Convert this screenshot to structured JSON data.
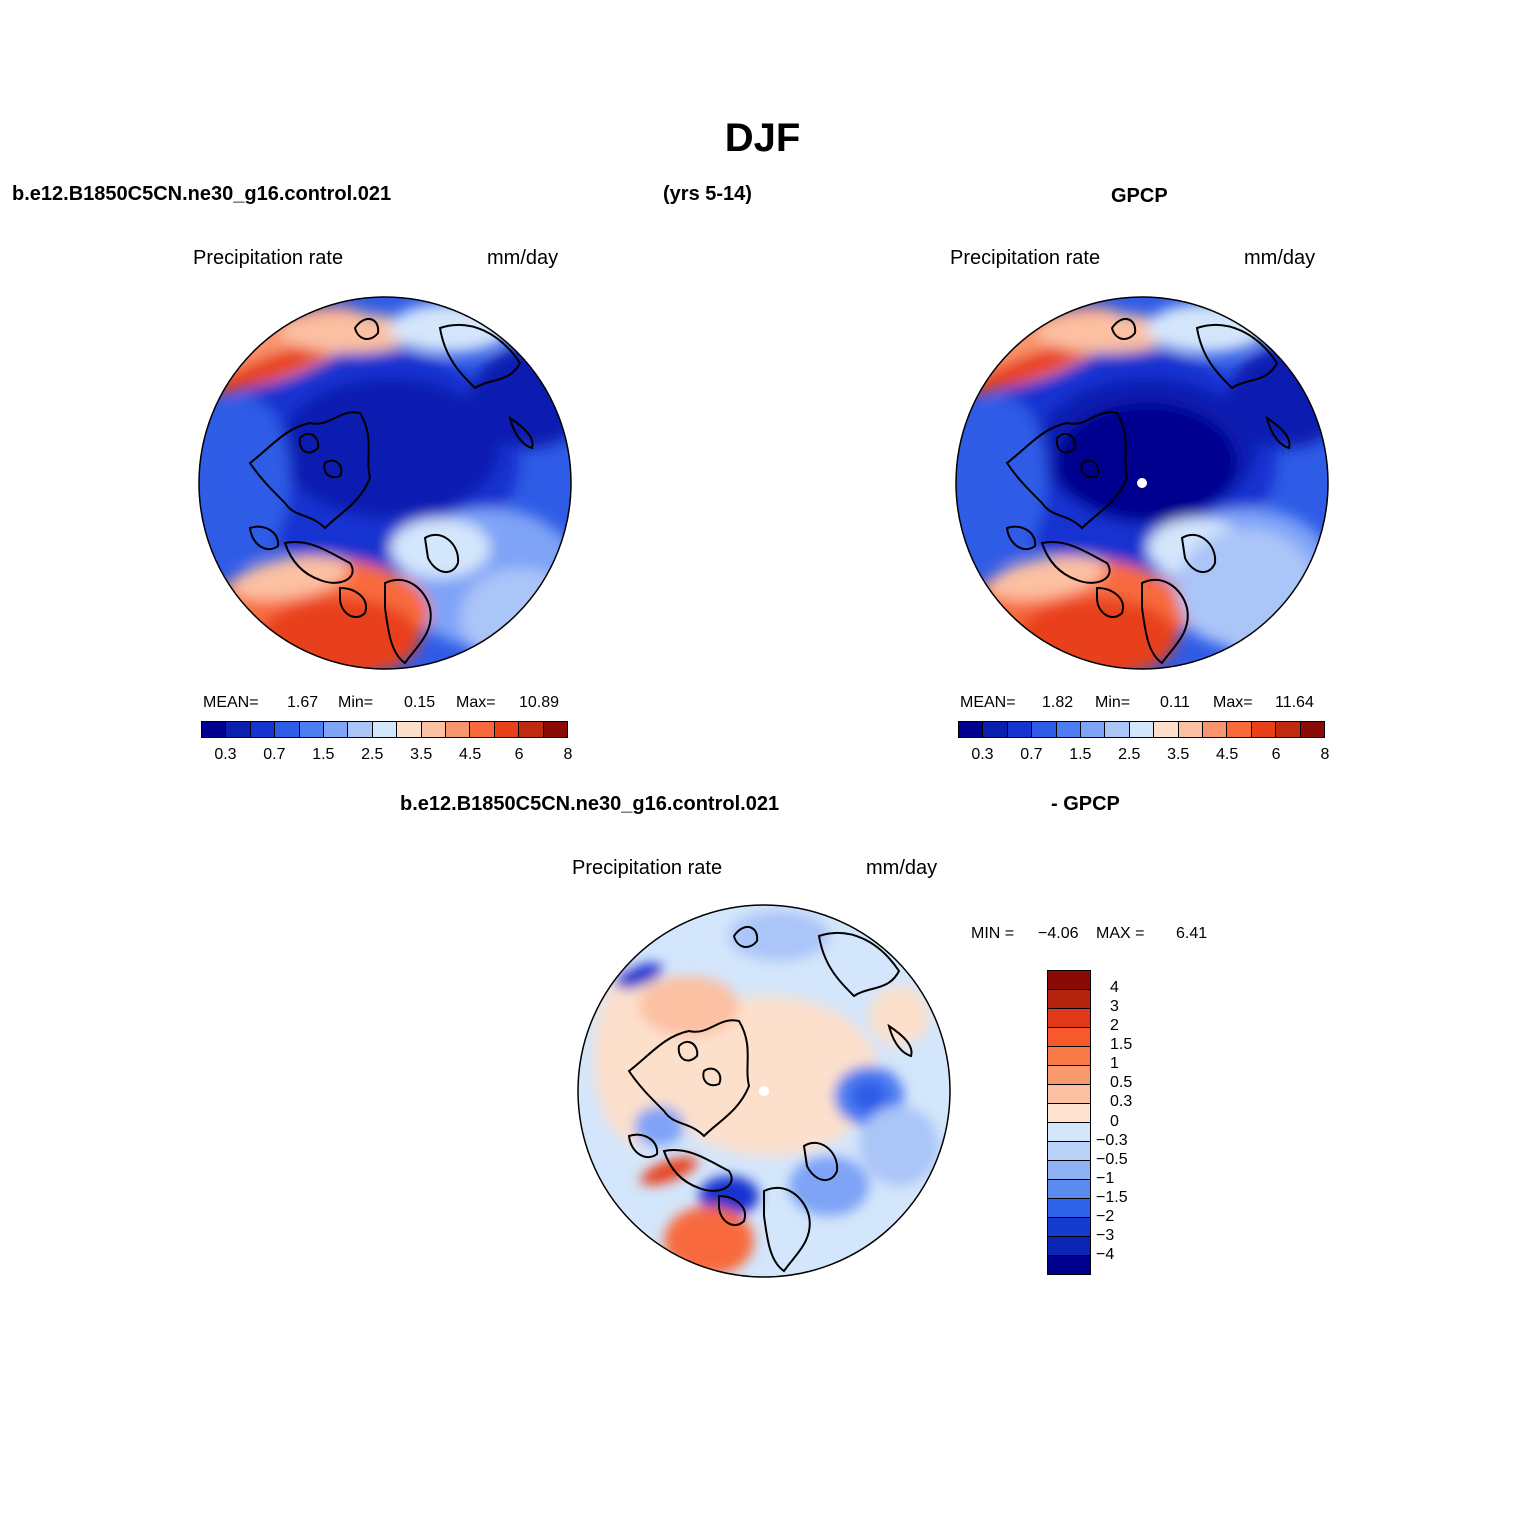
{
  "title": "DJF",
  "top_left": {
    "case_name": "b.e12.B1850C5CN.ne30_g16.control.021",
    "years": "(yrs 5-14)",
    "plot_title": "Precipitation  rate",
    "units": "mm/day",
    "mean_label": "MEAN=",
    "mean_value": "1.67",
    "min_label": "Min=",
    "min_value": "0.15",
    "max_label": "Max=",
    "max_value": "10.89"
  },
  "top_right": {
    "case_name": "GPCP",
    "plot_title": "Precipitation  rate",
    "units": "mm/day",
    "mean_label": "MEAN=",
    "mean_value": "1.82",
    "min_label": "Min=",
    "min_value": "0.11",
    "max_label": "Max=",
    "max_value": "11.64"
  },
  "bottom": {
    "case_name": "b.e12.B1850C5CN.ne30_g16.control.021",
    "minus_label": "- GPCP",
    "plot_title": "Precipitation  rate",
    "units": "mm/day",
    "min_label": "MIN =",
    "min_value": "−4.06",
    "max_label": "MAX =",
    "max_value": "6.41"
  },
  "colorbar_abs": {
    "colors": [
      "#00008f",
      "#0a1fb0",
      "#1733d0",
      "#2f5ce6",
      "#4d7df2",
      "#7ea3f7",
      "#aac5f8",
      "#d4e6fb",
      "#fde0cc",
      "#fcc0a2",
      "#f9956e",
      "#f86a3c",
      "#e8401a",
      "#c02a0e",
      "#8a0b06"
    ],
    "tick_labels": [
      "0.3",
      "0.7",
      "1.5",
      "2.5",
      "3.5",
      "4.5",
      "6",
      "8"
    ]
  },
  "colorbar_diff": {
    "colors_top_to_bottom": [
      "#8a0b06",
      "#b3230d",
      "#e0391a",
      "#f65a2b",
      "#f77a48",
      "#f99a6e",
      "#fcc0a2",
      "#fde3d0",
      "#d4e6fb",
      "#b8d2f8",
      "#8fb2f5",
      "#5c8bf0",
      "#2e63e8",
      "#143cd0",
      "#0a24b4",
      "#00008f"
    ],
    "tick_labels": [
      "4",
      "3",
      "2",
      "1.5",
      "1",
      "0.5",
      "0.3",
      "0",
      "−0.3",
      "−0.5",
      "−1",
      "−1.5",
      "−2",
      "−3",
      "−4"
    ]
  }
}
